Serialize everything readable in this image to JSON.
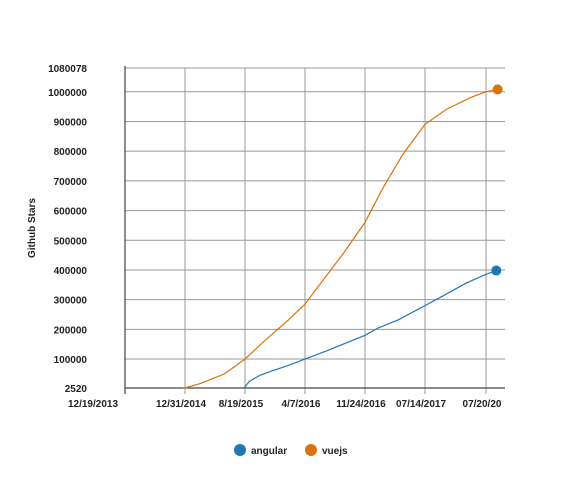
{
  "chart_data": {
    "type": "line",
    "ylabel": "Github Stars",
    "x_ticks": [
      "12/19/2013",
      "12/31/2014",
      "8/19/2015",
      "4/7/2016",
      "11/24/2016",
      "07/14/2017",
      "07/20/20"
    ],
    "y_ticks": [
      "2520",
      "100000",
      "200000",
      "300000",
      "400000",
      "500000",
      "600000",
      "700000",
      "800000",
      "900000",
      "1000000",
      "1080078"
    ],
    "y_tick_values": [
      2520,
      100000,
      200000,
      300000,
      400000,
      500000,
      600000,
      700000,
      800000,
      900000,
      1000000,
      1080078
    ],
    "ylim": [
      2520,
      1080078
    ],
    "grid": true,
    "legend_position": "bottom",
    "series": [
      {
        "name": "angular",
        "color": "#1f77b4",
        "points": [
          [
            "2015-08-15",
            2520
          ],
          [
            "2015-09-05",
            25000
          ],
          [
            "2015-10-15",
            45000
          ],
          [
            "2015-12-01",
            60000
          ],
          [
            "2016-02-01",
            78000
          ],
          [
            "2016-04-07",
            100000
          ],
          [
            "2016-07-01",
            128000
          ],
          [
            "2016-09-15",
            155000
          ],
          [
            "2016-11-24",
            180000
          ],
          [
            "2017-01-15",
            205000
          ],
          [
            "2017-04-01",
            232000
          ],
          [
            "2017-07-14",
            280000
          ],
          [
            "2017-10-01",
            318000
          ],
          [
            "2017-12-15",
            355000
          ],
          [
            "2018-03-01",
            385000
          ],
          [
            "2018-04-10",
            398000
          ]
        ],
        "end_marker": true
      },
      {
        "name": "vuejs",
        "color": "#d9730d",
        "points": [
          [
            "2014-12-20",
            2520
          ],
          [
            "2014-12-31",
            2520
          ],
          [
            "2015-03-01",
            18000
          ],
          [
            "2015-06-01",
            50000
          ],
          [
            "2015-08-19",
            100000
          ],
          [
            "2015-11-01",
            160000
          ],
          [
            "2016-02-01",
            230000
          ],
          [
            "2016-04-07",
            285000
          ],
          [
            "2016-06-15",
            365000
          ],
          [
            "2016-09-01",
            455000
          ],
          [
            "2016-11-24",
            560000
          ],
          [
            "2017-02-01",
            675000
          ],
          [
            "2017-04-20",
            790000
          ],
          [
            "2017-07-14",
            890000
          ],
          [
            "2017-10-01",
            940000
          ],
          [
            "2018-01-01",
            980000
          ],
          [
            "2018-03-01",
            1000000
          ],
          [
            "2018-04-15",
            1008000
          ]
        ],
        "end_marker": true
      }
    ]
  }
}
